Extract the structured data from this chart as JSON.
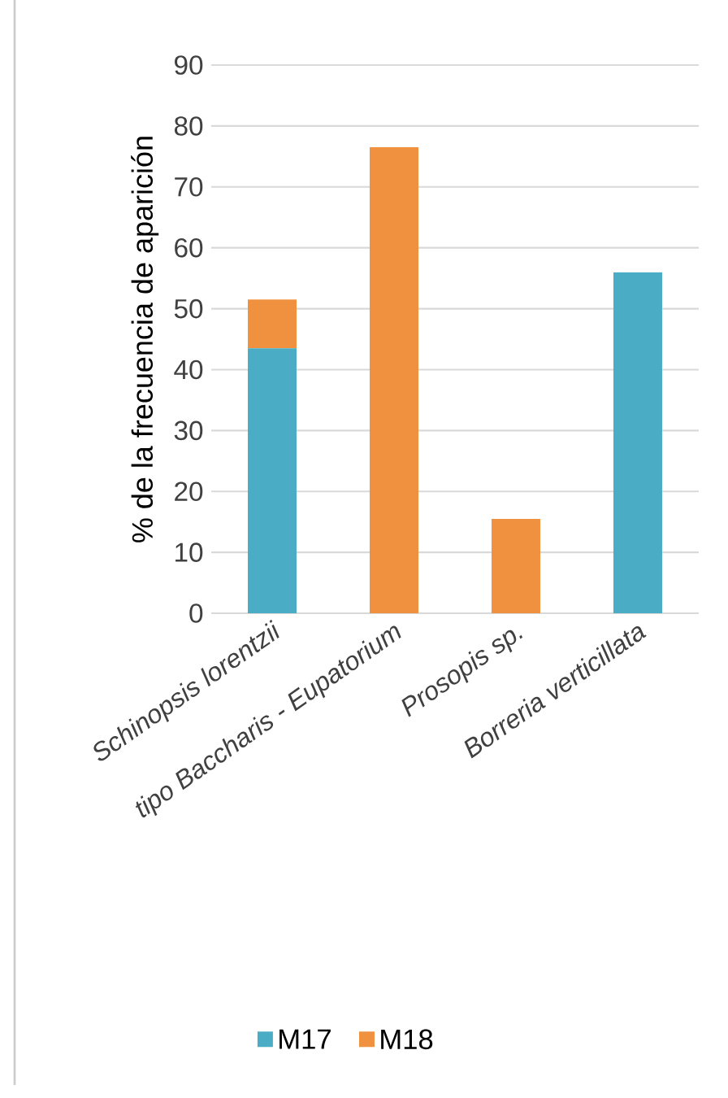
{
  "chart_data": {
    "type": "bar",
    "stacked": true,
    "ylabel": "% de la frecuencia de aparición",
    "categories": [
      "Schinopsis lorentzii",
      "tipo Baccharis - Eupatorium",
      "Prosopis sp.",
      "Borreria verticillata"
    ],
    "series": [
      {
        "name": "M17",
        "color": "#4bacc6",
        "values": [
          43.5,
          null,
          null,
          56
        ]
      },
      {
        "name": "M18",
        "color": "#f0913f",
        "values": [
          8,
          76.5,
          15.5,
          null
        ]
      }
    ],
    "ylim": [
      0,
      90
    ],
    "yticks": [
      0,
      10,
      20,
      30,
      40,
      50,
      60,
      70,
      80,
      90
    ],
    "grid": "y",
    "legend": "bottom"
  }
}
